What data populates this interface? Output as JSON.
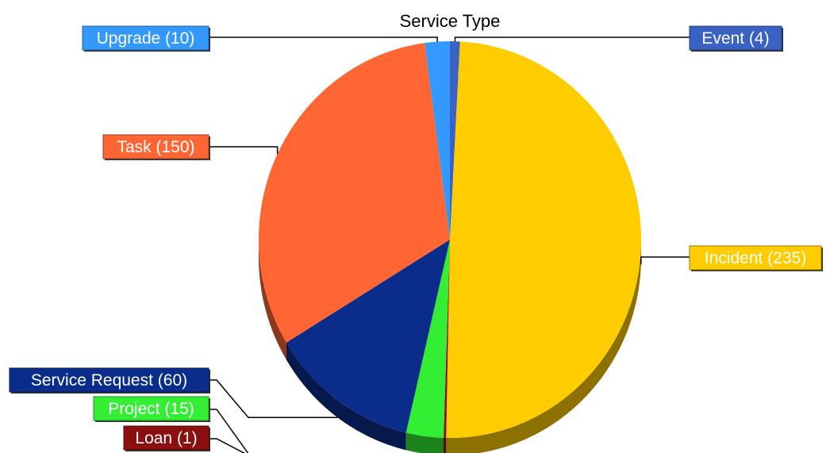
{
  "chart_data": {
    "type": "pie",
    "title": "Service Type",
    "slices": [
      {
        "name": "Event",
        "value": 4,
        "label": "Event (4)",
        "color": "#3a62c3",
        "text_color": "#ffffff"
      },
      {
        "name": "Incident",
        "value": 235,
        "label": "Incident (235)",
        "color": "#ffcc00",
        "text_color": "#ffffff"
      },
      {
        "name": "Loan",
        "value": 1,
        "label": "Loan (1)",
        "color": "#8b0f0f",
        "text_color": "#ffffff"
      },
      {
        "name": "Project",
        "value": 15,
        "label": "Project (15)",
        "color": "#33ee33",
        "text_color": "#ffffff"
      },
      {
        "name": "Service Request",
        "value": 60,
        "label": "Service Request (60)",
        "color": "#0a2d8c",
        "text_color": "#ffffff"
      },
      {
        "name": "Task",
        "value": 150,
        "label": "Task (150)",
        "color": "#ff6633",
        "text_color": "#ffffff"
      },
      {
        "name": "Upgrade",
        "value": 10,
        "label": "Upgrade (10)",
        "color": "#3399ff",
        "text_color": "#ffffff"
      }
    ],
    "start_angle_deg": 0,
    "direction": "clockwise",
    "style": "3d",
    "legend": "none"
  }
}
